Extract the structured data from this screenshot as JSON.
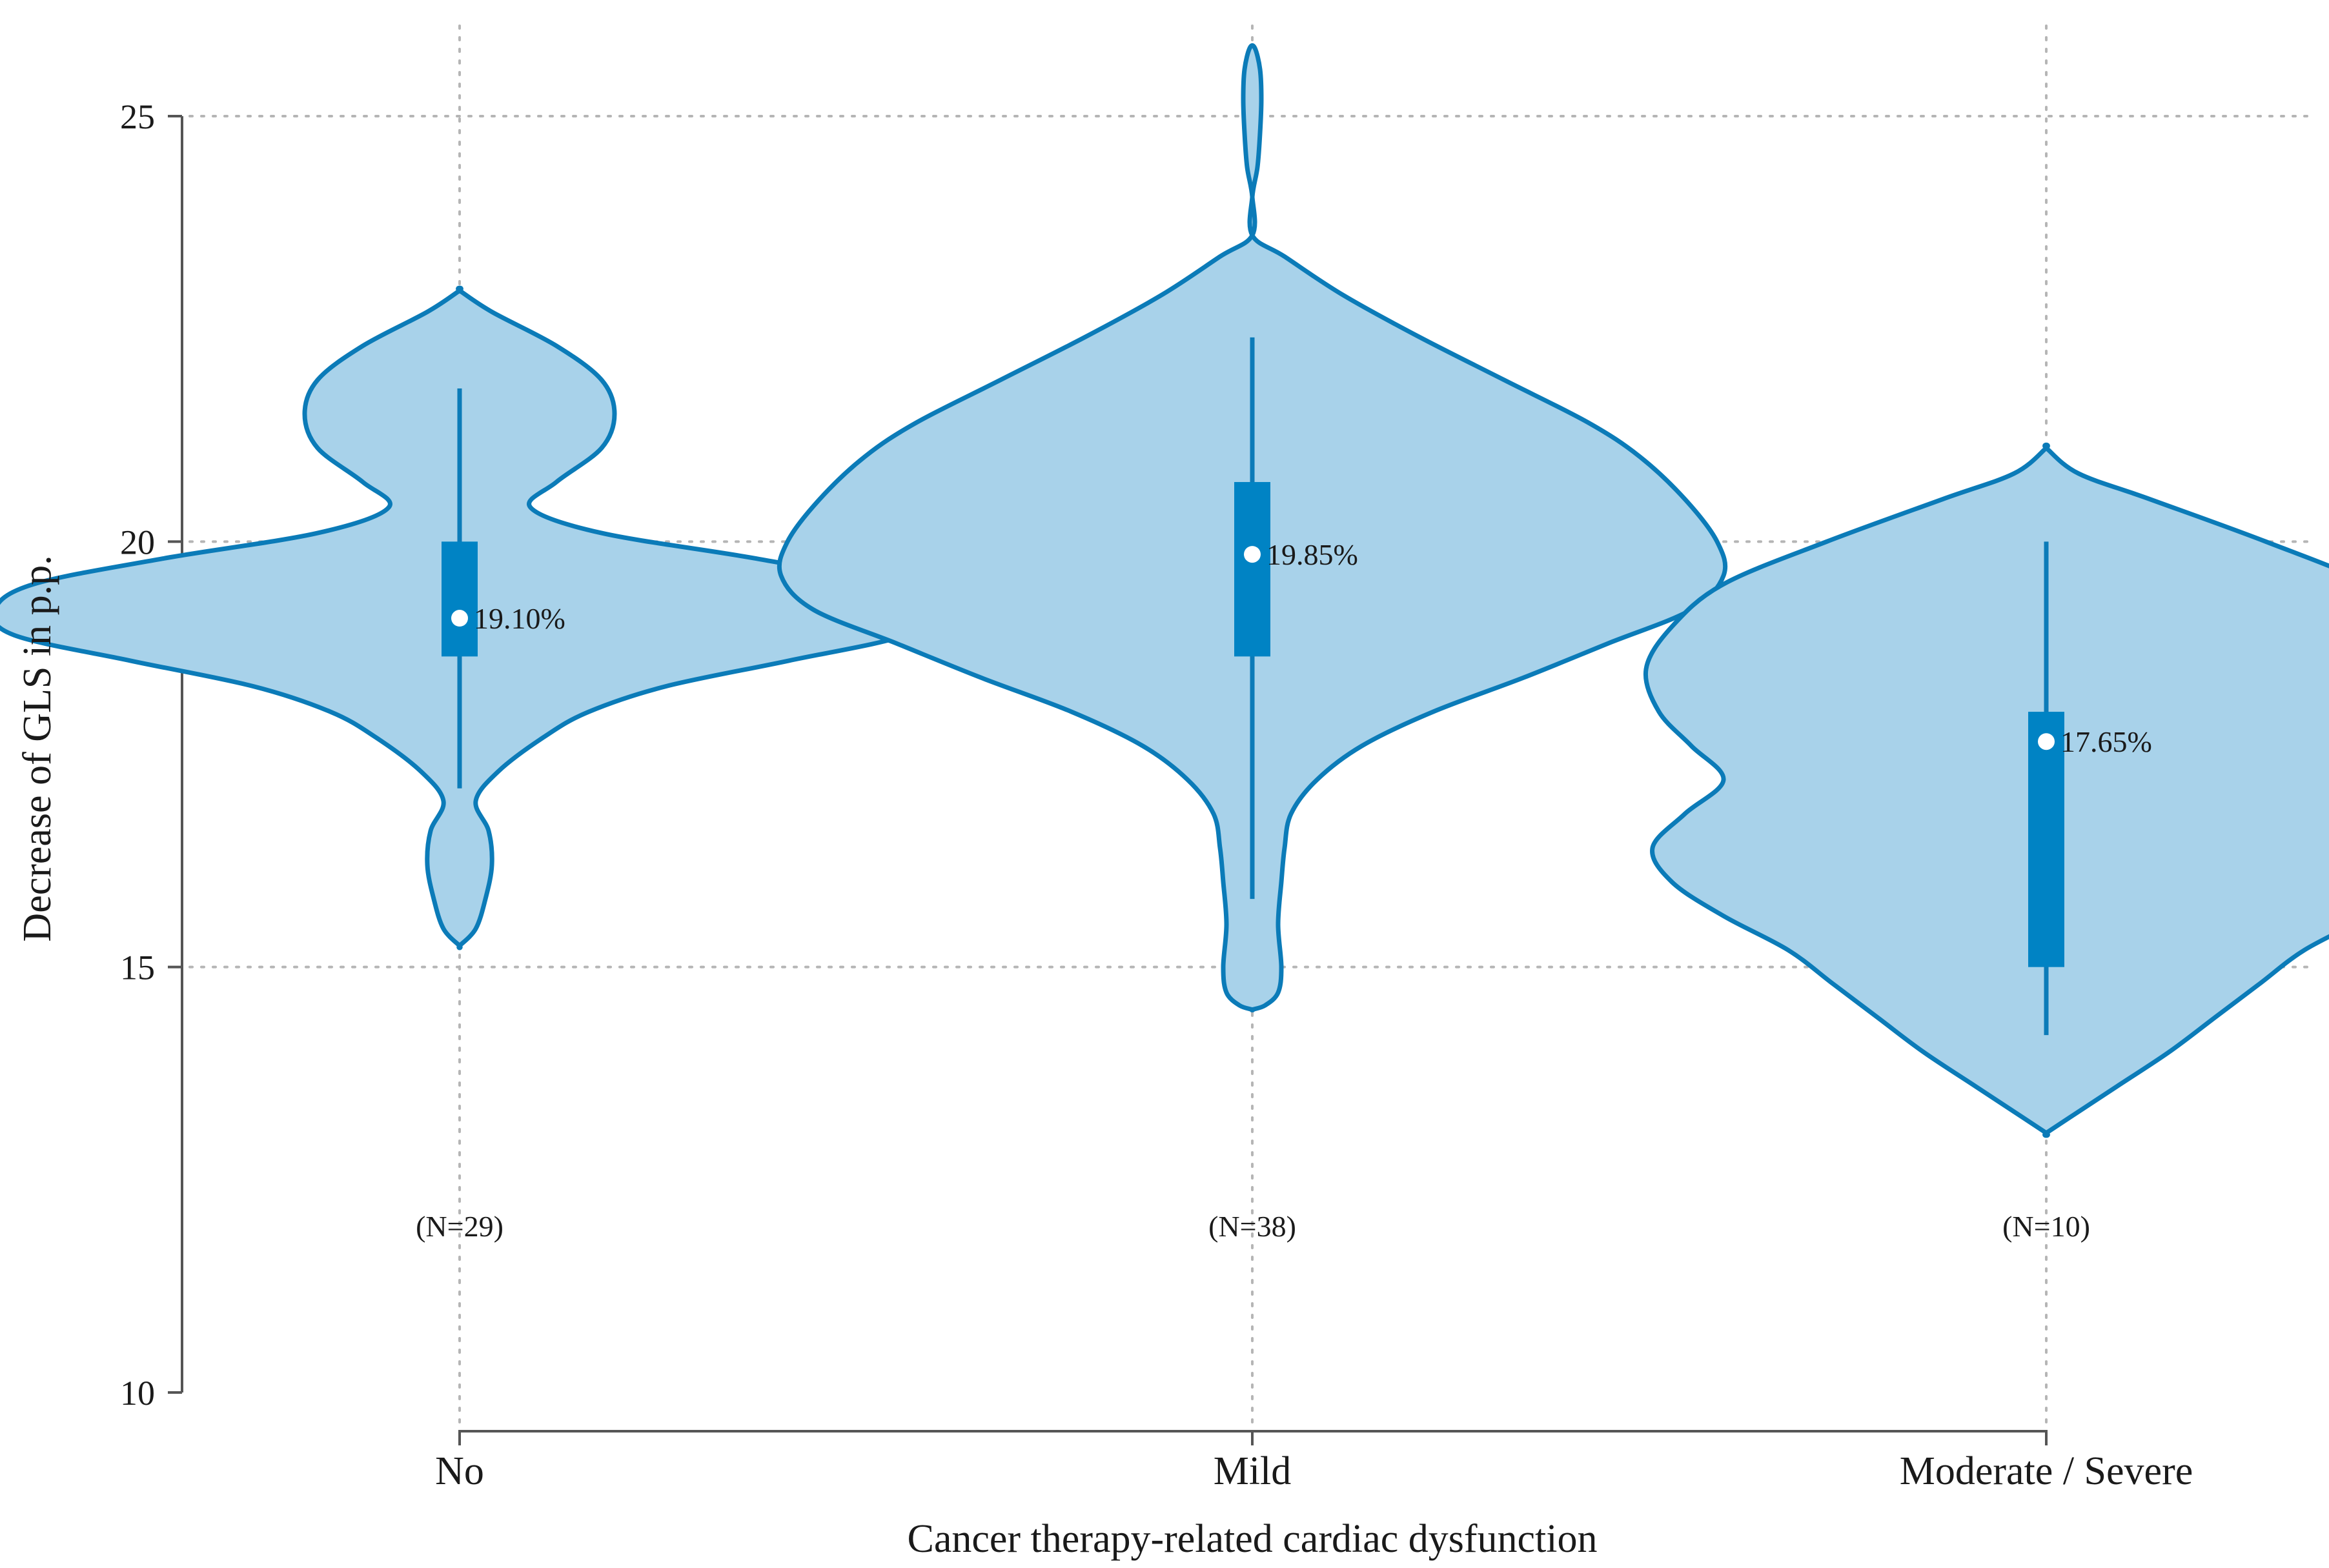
{
  "chart_data": {
    "type": "violin",
    "title": "",
    "xlabel": "Cancer therapy-related cardiac dysfunction",
    "ylabel": "Decrease of GLS in p.p.",
    "ylim": [
      10,
      25
    ],
    "yticks": [
      10,
      15,
      20,
      25
    ],
    "grid": true,
    "colors": {
      "fill": "#a8d2ea",
      "stroke": "#0b7bb8",
      "box": "#0083c4",
      "median": "#ffffff"
    },
    "categories": [
      "No",
      "Mild",
      "Moderate / Severe"
    ],
    "groups": [
      {
        "name": "No",
        "n_label": "(N=29)",
        "median": 19.1,
        "median_label": "19.10%",
        "q1": 18.65,
        "q3": 20.0,
        "whisker_low": 17.1,
        "whisker_high": 21.8,
        "density": [
          [
            22.95,
            0.0
          ],
          [
            22.7,
            0.05
          ],
          [
            22.3,
            0.15
          ],
          [
            21.9,
            0.22
          ],
          [
            21.5,
            0.24
          ],
          [
            21.1,
            0.22
          ],
          [
            20.7,
            0.15
          ],
          [
            20.4,
            0.11
          ],
          [
            20.1,
            0.22
          ],
          [
            19.8,
            0.46
          ],
          [
            19.5,
            0.66
          ],
          [
            19.2,
            0.72
          ],
          [
            18.9,
            0.69
          ],
          [
            18.6,
            0.51
          ],
          [
            18.3,
            0.32
          ],
          [
            18.0,
            0.2
          ],
          [
            17.7,
            0.13
          ],
          [
            17.3,
            0.06
          ],
          [
            16.95,
            0.025
          ],
          [
            16.6,
            0.045
          ],
          [
            16.2,
            0.05
          ],
          [
            15.8,
            0.04
          ],
          [
            15.45,
            0.025
          ],
          [
            15.25,
            0.0
          ]
        ]
      },
      {
        "name": "Mild",
        "n_label": "(N=38)",
        "median": 19.85,
        "median_label": "19.85%",
        "q1": 18.65,
        "q3": 20.7,
        "whisker_low": 15.8,
        "whisker_high": 22.4,
        "density": [
          [
            25.8,
            0.004
          ],
          [
            25.55,
            0.012
          ],
          [
            25.2,
            0.014
          ],
          [
            24.8,
            0.012
          ],
          [
            24.4,
            0.008
          ],
          [
            24.05,
            0.0
          ],
          [
            23.6,
            0.0
          ],
          [
            23.35,
            0.05
          ],
          [
            22.9,
            0.14
          ],
          [
            22.4,
            0.26
          ],
          [
            21.9,
            0.39
          ],
          [
            21.4,
            0.52
          ],
          [
            21.0,
            0.6
          ],
          [
            20.5,
            0.67
          ],
          [
            20.0,
            0.72
          ],
          [
            19.6,
            0.73
          ],
          [
            19.2,
            0.68
          ],
          [
            18.8,
            0.55
          ],
          [
            18.4,
            0.42
          ],
          [
            18.0,
            0.28
          ],
          [
            17.6,
            0.17
          ],
          [
            17.2,
            0.1
          ],
          [
            16.8,
            0.06
          ],
          [
            16.4,
            0.05
          ],
          [
            16.0,
            0.045
          ],
          [
            15.5,
            0.04
          ],
          [
            15.0,
            0.045
          ],
          [
            14.7,
            0.04
          ],
          [
            14.55,
            0.02
          ],
          [
            14.5,
            0.0
          ]
        ]
      },
      {
        "name": "Moderate / Severe",
        "n_label": "(N=10)",
        "median": 17.65,
        "median_label": "17.65%",
        "q1": 15.0,
        "q3": 18.0,
        "whisker_low": 14.2,
        "whisker_high": 20.0,
        "density": [
          [
            21.1,
            0.0
          ],
          [
            20.8,
            0.05
          ],
          [
            20.5,
            0.16
          ],
          [
            20.0,
            0.34
          ],
          [
            19.5,
            0.5
          ],
          [
            19.0,
            0.58
          ],
          [
            18.5,
            0.62
          ],
          [
            18.0,
            0.6
          ],
          [
            17.6,
            0.55
          ],
          [
            17.2,
            0.5
          ],
          [
            16.8,
            0.56
          ],
          [
            16.4,
            0.61
          ],
          [
            16.0,
            0.58
          ],
          [
            15.6,
            0.5
          ],
          [
            15.2,
            0.4
          ],
          [
            14.8,
            0.33
          ],
          [
            14.4,
            0.26
          ],
          [
            14.0,
            0.19
          ],
          [
            13.6,
            0.11
          ],
          [
            13.3,
            0.05
          ],
          [
            13.05,
            0.0
          ]
        ]
      }
    ]
  }
}
